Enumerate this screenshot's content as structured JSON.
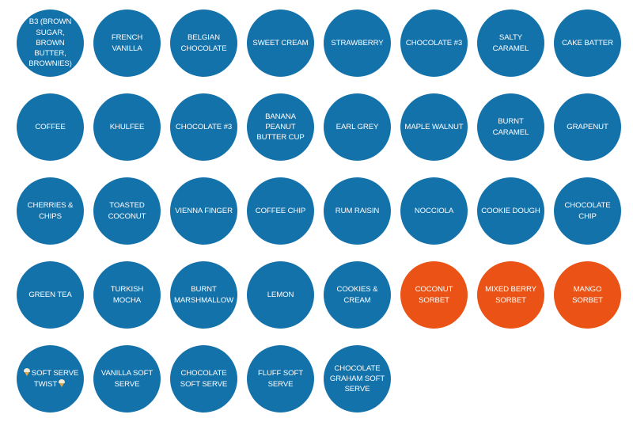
{
  "colors": {
    "ice_cream": "#1472ab",
    "sorbet": "#ea5315",
    "text": "#ffffff"
  },
  "flavors": [
    {
      "label": "B3 (BROWN SUGAR, BROWN BUTTER, BROWNIES)",
      "kind": "ice-cream"
    },
    {
      "label": "FRENCH VANILLA",
      "kind": "ice-cream"
    },
    {
      "label": "BELGIAN CHOCOLATE",
      "kind": "ice-cream"
    },
    {
      "label": "SWEET CREAM",
      "kind": "ice-cream"
    },
    {
      "label": "STRAWBERRY",
      "kind": "ice-cream"
    },
    {
      "label": "CHOCOLATE #3",
      "kind": "ice-cream"
    },
    {
      "label": "SALTY CARAMEL",
      "kind": "ice-cream"
    },
    {
      "label": "CAKE BATTER",
      "kind": "ice-cream"
    },
    {
      "label": "COFFEE",
      "kind": "ice-cream"
    },
    {
      "label": "KHULFEE",
      "kind": "ice-cream"
    },
    {
      "label": "CHOCOLATE #3",
      "kind": "ice-cream"
    },
    {
      "label": "BANANA PEANUT BUTTER CUP",
      "kind": "ice-cream"
    },
    {
      "label": "EARL GREY",
      "kind": "ice-cream"
    },
    {
      "label": "MAPLE WALNUT",
      "kind": "ice-cream"
    },
    {
      "label": "BURNT CARAMEL",
      "kind": "ice-cream"
    },
    {
      "label": "GRAPENUT",
      "kind": "ice-cream"
    },
    {
      "label": "CHERRIES & CHIPS",
      "kind": "ice-cream"
    },
    {
      "label": "TOASTED COCONUT",
      "kind": "ice-cream"
    },
    {
      "label": "VIENNA FINGER",
      "kind": "ice-cream"
    },
    {
      "label": "COFFEE CHIP",
      "kind": "ice-cream"
    },
    {
      "label": "RUM RAISIN",
      "kind": "ice-cream"
    },
    {
      "label": "NOCCIOLA",
      "kind": "ice-cream"
    },
    {
      "label": "COOKIE DOUGH",
      "kind": "ice-cream"
    },
    {
      "label": "CHOCOLATE CHIP",
      "kind": "ice-cream"
    },
    {
      "label": "GREEN TEA",
      "kind": "ice-cream"
    },
    {
      "label": "TURKISH MOCHA",
      "kind": "ice-cream"
    },
    {
      "label": "BURNT MARSHMALLOW",
      "kind": "ice-cream"
    },
    {
      "label": "LEMON",
      "kind": "ice-cream"
    },
    {
      "label": "COOKIES & CREAM",
      "kind": "ice-cream"
    },
    {
      "label": "COCONUT SORBET",
      "kind": "sorbet"
    },
    {
      "label": "MIXED BERRY SORBET",
      "kind": "sorbet"
    },
    {
      "label": "MANGO SORBET",
      "kind": "sorbet"
    },
    {
      "label": "SOFT SERVE TWIST",
      "kind": "ice-cream",
      "icon": "ice-cream-cone-icon"
    },
    {
      "label": "VANILLA SOFT SERVE",
      "kind": "ice-cream"
    },
    {
      "label": "CHOCOLATE SOFT SERVE",
      "kind": "ice-cream"
    },
    {
      "label": "FLUFF SOFT SERVE",
      "kind": "ice-cream"
    },
    {
      "label": "CHOCOLATE GRAHAM SOFT SERVE",
      "kind": "ice-cream"
    }
  ]
}
